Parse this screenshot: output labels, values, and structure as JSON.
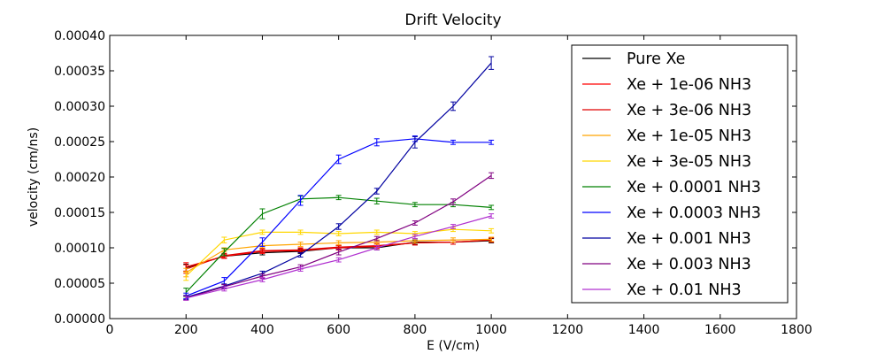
{
  "chart_data": {
    "type": "line",
    "title": "Drift Velocity",
    "xlabel": "E (V/cm)",
    "ylabel": "velocity (cm/ns)",
    "xlim": [
      0,
      1800
    ],
    "ylim": [
      0,
      0.0004
    ],
    "x_ticks": [
      "0",
      "200",
      "400",
      "600",
      "800",
      "1000",
      "1200",
      "1400",
      "1600",
      "1800"
    ],
    "y_ticks": [
      "0.00000",
      "0.00005",
      "0.00010",
      "0.00015",
      "0.00020",
      "0.00025",
      "0.00030",
      "0.00035",
      "0.00040"
    ],
    "x_tick_values": [
      0,
      200,
      400,
      600,
      800,
      1000,
      1200,
      1400,
      1600,
      1800
    ],
    "y_tick_values": [
      0,
      5e-05,
      0.0001,
      0.00015,
      0.0002,
      0.00025,
      0.0003,
      0.00035,
      0.0004
    ],
    "grid": false,
    "legend_position": "right",
    "x": [
      200,
      300,
      400,
      500,
      600,
      700,
      800,
      900,
      1000
    ],
    "series": [
      {
        "name": "Pure Xe",
        "color": "#000000",
        "values": [
          7.2e-05,
          8.8e-05,
          9.3e-05,
          9.5e-05,
          0.0001,
          0.0001,
          0.000108,
          0.000108,
          0.00011
        ],
        "errors": [
          5e-06,
          3e-06,
          3e-06,
          3e-06,
          3e-06,
          3e-06,
          3e-06,
          3e-06,
          3e-06
        ]
      },
      {
        "name": "Xe + 1e-06 NH3",
        "color": "#ff0000",
        "values": [
          7.3e-05,
          8.8e-05,
          9.5e-05,
          9.6e-05,
          0.0001,
          0.000102,
          0.000107,
          0.000108,
          0.000111
        ],
        "errors": [
          6e-06,
          3e-06,
          3e-06,
          3e-06,
          3e-06,
          3e-06,
          3e-06,
          3e-06,
          3e-06
        ]
      },
      {
        "name": "Xe + 3e-06 NH3",
        "color": "#e00000",
        "values": [
          7e-05,
          8.9e-05,
          9.6e-05,
          9.7e-05,
          0.000101,
          0.000103,
          0.000107,
          0.000108,
          0.000111
        ],
        "errors": [
          6e-06,
          3e-06,
          3e-06,
          3e-06,
          3e-06,
          3e-06,
          3e-06,
          3e-06,
          3e-06
        ]
      },
      {
        "name": "Xe + 1e-05 NH3",
        "color": "#ffa500",
        "values": [
          6.5e-05,
          9.7e-05,
          0.000103,
          0.000105,
          0.000107,
          0.000108,
          0.00011,
          0.000111,
          0.000112
        ],
        "errors": [
          6e-06,
          3e-06,
          3e-06,
          3e-06,
          3e-06,
          3e-06,
          3e-06,
          3e-06,
          3e-06
        ]
      },
      {
        "name": "Xe + 3e-05 NH3",
        "color": "#ffd700",
        "values": [
          6e-05,
          0.000111,
          0.000122,
          0.000122,
          0.00012,
          0.000122,
          0.00012,
          0.000126,
          0.000124
        ],
        "errors": [
          6e-06,
          4e-06,
          3e-06,
          3e-06,
          3e-06,
          3e-06,
          3e-06,
          3e-06,
          3e-06
        ]
      },
      {
        "name": "Xe + 0.0001 NH3",
        "color": "#008000",
        "values": [
          3.7e-05,
          9.4e-05,
          0.000148,
          0.000169,
          0.000171,
          0.000166,
          0.000161,
          0.000161,
          0.000157
        ],
        "errors": [
          6e-06,
          5e-06,
          7e-06,
          4e-06,
          3e-06,
          4e-06,
          3e-06,
          3e-06,
          3e-06
        ]
      },
      {
        "name": "Xe + 0.0003 NH3",
        "color": "#0000ff",
        "values": [
          3.2e-05,
          5.3e-05,
          0.000108,
          0.000167,
          0.000225,
          0.000249,
          0.000254,
          0.000249,
          0.000249
        ],
        "errors": [
          4e-06,
          5e-06,
          6e-06,
          7e-06,
          6e-06,
          5e-06,
          4e-06,
          3e-06,
          3e-06
        ]
      },
      {
        "name": "Xe + 0.001 NH3",
        "color": "#0000a0",
        "values": [
          3e-05,
          4.6e-05,
          6.4e-05,
          9e-05,
          0.00013,
          0.00018,
          0.000249,
          0.0003,
          0.000361
        ],
        "errors": [
          3e-06,
          3e-06,
          3e-06,
          3e-06,
          4e-06,
          4e-06,
          8e-06,
          6e-06,
          9e-06
        ]
      },
      {
        "name": "Xe + 0.003 NH3",
        "color": "#800080",
        "values": [
          2.9e-05,
          4.5e-05,
          6e-05,
          7.3e-05,
          9.4e-05,
          0.000113,
          0.000135,
          0.000165,
          0.000202
        ],
        "errors": [
          3e-06,
          3e-06,
          3e-06,
          3e-06,
          4e-06,
          3e-06,
          3e-06,
          4e-06,
          4e-06
        ]
      },
      {
        "name": "Xe + 0.01 NH3",
        "color": "#b030d0",
        "values": [
          2.9e-05,
          4.2e-05,
          5.5e-05,
          7e-05,
          8.3e-05,
          0.0001,
          0.000116,
          0.00013,
          0.000145
        ],
        "errors": [
          3e-06,
          3e-06,
          3e-06,
          3e-06,
          3e-06,
          3e-06,
          3e-06,
          3e-06,
          3e-06
        ]
      }
    ]
  }
}
